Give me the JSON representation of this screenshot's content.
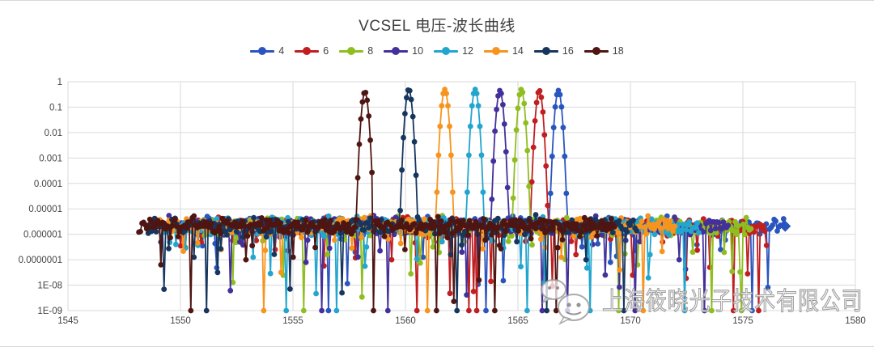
{
  "page": {
    "background": "#ffffff",
    "frame_border_color": "#d9d9d9"
  },
  "chart": {
    "title": "VCSEL 电压-波长曲线",
    "watermark": {
      "logo": "chat-bubbles-logo",
      "text": "上海筱晓光子技术有限公司"
    }
  },
  "chart_data": {
    "type": "line",
    "title": "VCSEL 电压-波长曲线",
    "xlabel": "",
    "ylabel": "",
    "x_range": [
      1545,
      1580
    ],
    "x_ticks": [
      1545,
      1550,
      1555,
      1560,
      1565,
      1570,
      1575,
      1580
    ],
    "y_scale": "log",
    "y_ticks": [
      "1",
      "0.1",
      "0.01",
      "0.001",
      "0.0001",
      "0.00001",
      "0.000001",
      "0.0000001",
      "1E-08",
      "1E-09"
    ],
    "y_tick_log10": [
      0,
      -1,
      -2,
      -3,
      -4,
      -5,
      -6,
      -7,
      -8,
      -9
    ],
    "grid": true,
    "grid_color": "#dadada",
    "axis_text_color": "#444444",
    "legend_position": "top",
    "sample_step_nm": 0.07,
    "seed": 7,
    "peak_width_decades_per_nm2": 33,
    "noise_band": {
      "log10_center": -5.68,
      "log10_sigma": 0.32
    },
    "series": [
      {
        "name": "4",
        "color": "#2B55BE",
        "x_start": 1550.0,
        "x_end": 1576.9,
        "peak_x": 1566.8,
        "peak_value": 0.45,
        "end_marker": "diamond",
        "deep_dropouts_to_1e9": [
          1556.6,
          1563.55,
          1575.4
        ],
        "dips_log10": [
          [
            1557.8,
            -6.7
          ],
          [
            1560.8,
            -6.9
          ],
          [
            1569.1,
            -7.1
          ],
          [
            1574.0,
            -6.6
          ]
        ]
      },
      {
        "name": "6",
        "color": "#C01E20",
        "x_start": 1549.8,
        "x_end": 1576.1,
        "peak_x": 1565.95,
        "peak_value": 0.45,
        "end_marker": "none",
        "deep_dropouts_to_1e9": [
          1560.5,
          1562.85,
          1563.15,
          1574.6,
          1575.7
        ],
        "dips_log10": [
          [
            1554.2,
            -6.6
          ],
          [
            1559.4,
            -7.0
          ],
          [
            1567.6,
            -6.8
          ],
          [
            1573.5,
            -7.3
          ]
        ]
      },
      {
        "name": "8",
        "color": "#8FBE20",
        "x_start": 1549.6,
        "x_end": 1575.4,
        "peak_x": 1565.15,
        "peak_value": 0.5,
        "end_marker": "none",
        "deep_dropouts_to_1e9": [
          1555.45,
          1569.5,
          1573.6,
          1574.95
        ],
        "dips_log10": [
          [
            1556.5,
            -6.8
          ],
          [
            1561.2,
            -6.5
          ],
          [
            1570.3,
            -7.2
          ],
          [
            1572.8,
            -6.7
          ]
        ]
      },
      {
        "name": "10",
        "color": "#44309A",
        "x_start": 1549.35,
        "x_end": 1574.4,
        "peak_x": 1564.2,
        "peak_value": 0.45,
        "end_marker": "none",
        "deep_dropouts_to_1e9": [
          1556.3,
          1559.2,
          1566.05,
          1567.2,
          1570.2,
          1573.3
        ],
        "dips_log10": [
          [
            1555.6,
            -7.1
          ],
          [
            1562.5,
            -6.7
          ],
          [
            1568.9,
            -7.6
          ],
          [
            1572.2,
            -7.0
          ]
        ]
      },
      {
        "name": "12",
        "color": "#22A5CE",
        "x_start": 1549.1,
        "x_end": 1573.1,
        "peak_x": 1563.1,
        "peak_value": 0.5,
        "end_marker": "none",
        "deep_dropouts_to_1e9": [
          1554.7,
          1556.95,
          1565.4,
          1568.2,
          1572.4
        ],
        "dips_log10": [
          [
            1553.2,
            -6.9
          ],
          [
            1558.3,
            -6.5
          ],
          [
            1566.2,
            -7.9
          ],
          [
            1570.9,
            -6.8
          ]
        ]
      },
      {
        "name": "14",
        "color": "#F7941E",
        "x_start": 1548.8,
        "x_end": 1572.0,
        "peak_x": 1561.75,
        "peak_value": 0.5,
        "end_marker": "none",
        "deep_dropouts_to_1e9": [
          1553.7,
          1561.0,
          1570.6
        ],
        "dips_log10": [
          [
            1551.8,
            -6.6
          ],
          [
            1554.5,
            -7.5
          ],
          [
            1566.9,
            -6.9
          ],
          [
            1569.5,
            -7.4
          ]
        ]
      },
      {
        "name": "16",
        "color": "#17365D",
        "x_start": 1548.5,
        "x_end": 1570.3,
        "peak_x": 1560.15,
        "peak_value": 0.5,
        "end_marker": "none",
        "deep_dropouts_to_1e9": [
          1551.15,
          1562.3,
          1566.3,
          1569.7
        ],
        "dips_log10": [
          [
            1550.6,
            -6.9
          ],
          [
            1557.2,
            -8.3
          ],
          [
            1562.0,
            -6.8
          ],
          [
            1568.0,
            -7.0
          ]
        ]
      },
      {
        "name": "18",
        "color": "#4E1512",
        "x_start": 1548.15,
        "x_end": 1569.3,
        "peak_x": 1558.2,
        "peak_value": 0.4,
        "end_marker": "none",
        "deep_dropouts_to_1e9": [
          1550.45,
          1558.6,
          1561.4,
          1564.0,
          1566.7
        ],
        "dips_log10": [
          [
            1549.1,
            -7.2
          ],
          [
            1552.9,
            -7.0
          ],
          [
            1555.0,
            -6.9
          ],
          [
            1560.0,
            -6.6
          ],
          [
            1563.3,
            -7.8
          ]
        ]
      }
    ]
  }
}
